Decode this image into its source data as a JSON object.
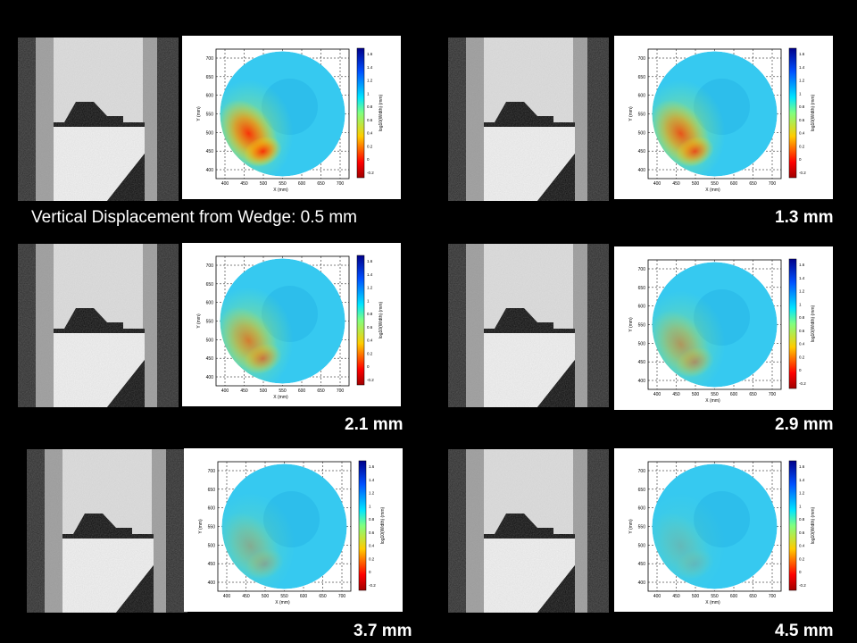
{
  "panels": [
    {
      "caption": "Vertical Displacement from Wedge: 0.5 mm",
      "intensity": 1.0
    },
    {
      "caption": "1.3 mm",
      "intensity": 0.8
    },
    {
      "caption": "2.1 mm",
      "intensity": 0.55
    },
    {
      "caption": "2.9 mm",
      "intensity": 0.38
    },
    {
      "caption": "3.7 mm",
      "intensity": 0.22
    },
    {
      "caption": "4.5 mm",
      "intensity": 0.12
    }
  ],
  "map": {
    "y_label": "Y (mm)",
    "x_label": "X (mm)",
    "y_ticks": [
      "700",
      "650",
      "600",
      "550",
      "500",
      "450",
      "400"
    ],
    "x_ticks": [
      "400",
      "450",
      "500",
      "550",
      "600",
      "650",
      "700"
    ],
    "colorbar_ticks": [
      "1.6",
      "1.4",
      "1.2",
      "1",
      "0.8",
      "0.6",
      "0.4",
      "0.2",
      "0",
      "-0.2"
    ],
    "colorbar_label": "log10(Width) (mm)"
  }
}
